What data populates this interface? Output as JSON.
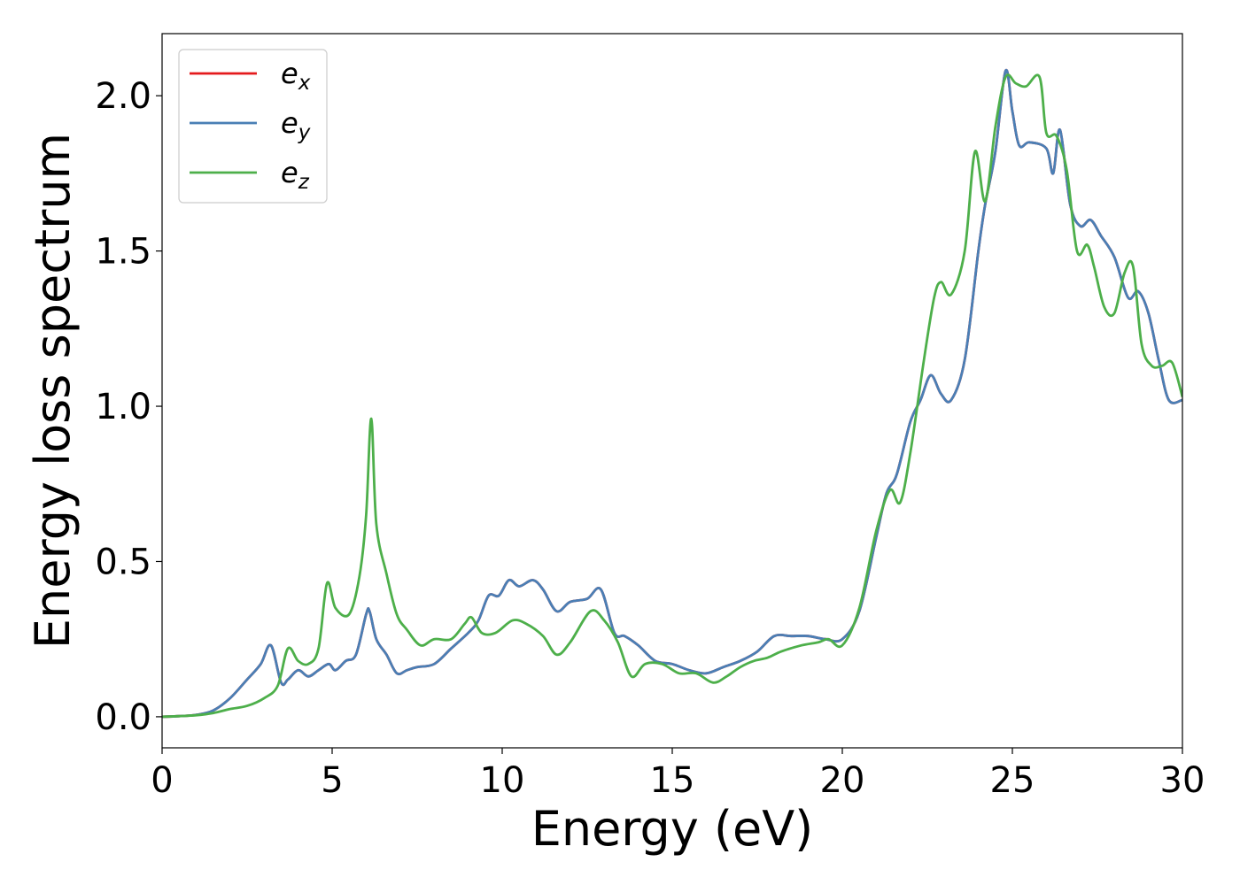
{
  "chart_data": {
    "type": "line",
    "xlabel": "Energy (eV)",
    "ylabel": "Energy loss spectrum",
    "xlim": [
      0,
      30
    ],
    "ylim": [
      -0.1,
      2.2
    ],
    "xticks": [
      0,
      5,
      10,
      15,
      20,
      25,
      30
    ],
    "yticks": [
      0.0,
      0.5,
      1.0,
      1.5,
      2.0
    ],
    "xtick_labels": [
      "0",
      "5",
      "10",
      "15",
      "20",
      "25",
      "30"
    ],
    "ytick_labels": [
      "0.0",
      "0.5",
      "1.0",
      "1.5",
      "2.0"
    ],
    "grid": false,
    "legend_position": "top-left",
    "series": [
      {
        "name": "e_x",
        "label_base": "e",
        "label_sub": "x",
        "color": "#e41a1c",
        "x": [
          0,
          0.5,
          1.0,
          1.5,
          2.0,
          2.5,
          2.9,
          3.2,
          3.5,
          3.7,
          4.0,
          4.3,
          4.6,
          4.9,
          5.1,
          5.4,
          5.7,
          6.0,
          6.1,
          6.3,
          6.6,
          6.9,
          7.2,
          7.5,
          8.0,
          8.5,
          9.0,
          9.3,
          9.6,
          9.9,
          10.2,
          10.5,
          10.9,
          11.2,
          11.6,
          12.0,
          12.5,
          12.9,
          13.3,
          13.6,
          14.0,
          14.5,
          15.0,
          15.5,
          16.0,
          16.5,
          17.0,
          17.5,
          18.0,
          18.5,
          19.0,
          19.5,
          20.0,
          20.5,
          21.0,
          21.3,
          21.6,
          22.0,
          22.3,
          22.6,
          22.9,
          23.2,
          23.6,
          24.0,
          24.2,
          24.5,
          24.8,
          25.0,
          25.2,
          25.5,
          26.0,
          26.2,
          26.4,
          26.7,
          27.0,
          27.3,
          27.6,
          28.0,
          28.4,
          28.7,
          29.0,
          29.3,
          29.6,
          30.0
        ],
        "y": [
          0.0,
          0.002,
          0.006,
          0.02,
          0.06,
          0.12,
          0.17,
          0.23,
          0.11,
          0.12,
          0.15,
          0.13,
          0.15,
          0.17,
          0.15,
          0.18,
          0.2,
          0.33,
          0.34,
          0.25,
          0.2,
          0.14,
          0.15,
          0.16,
          0.17,
          0.22,
          0.27,
          0.31,
          0.39,
          0.39,
          0.44,
          0.42,
          0.44,
          0.41,
          0.34,
          0.37,
          0.38,
          0.41,
          0.27,
          0.26,
          0.23,
          0.18,
          0.17,
          0.15,
          0.14,
          0.16,
          0.18,
          0.21,
          0.26,
          0.26,
          0.26,
          0.25,
          0.25,
          0.34,
          0.58,
          0.72,
          0.78,
          0.95,
          1.02,
          1.1,
          1.04,
          1.02,
          1.15,
          1.5,
          1.65,
          1.82,
          2.08,
          1.95,
          1.84,
          1.85,
          1.83,
          1.75,
          1.89,
          1.65,
          1.58,
          1.6,
          1.55,
          1.48,
          1.35,
          1.37,
          1.3,
          1.15,
          1.02,
          1.02
        ]
      },
      {
        "name": "e_y",
        "label_base": "e",
        "label_sub": "y",
        "color": "#4a7fb5",
        "x": [
          0,
          0.5,
          1.0,
          1.5,
          2.0,
          2.5,
          2.9,
          3.2,
          3.5,
          3.7,
          4.0,
          4.3,
          4.6,
          4.9,
          5.1,
          5.4,
          5.7,
          6.0,
          6.1,
          6.3,
          6.6,
          6.9,
          7.2,
          7.5,
          8.0,
          8.5,
          9.0,
          9.3,
          9.6,
          9.9,
          10.2,
          10.5,
          10.9,
          11.2,
          11.6,
          12.0,
          12.5,
          12.9,
          13.3,
          13.6,
          14.0,
          14.5,
          15.0,
          15.5,
          16.0,
          16.5,
          17.0,
          17.5,
          18.0,
          18.5,
          19.0,
          19.5,
          20.0,
          20.5,
          21.0,
          21.3,
          21.6,
          22.0,
          22.3,
          22.6,
          22.9,
          23.2,
          23.6,
          24.0,
          24.2,
          24.5,
          24.8,
          25.0,
          25.2,
          25.5,
          26.0,
          26.2,
          26.4,
          26.7,
          27.0,
          27.3,
          27.6,
          28.0,
          28.4,
          28.7,
          29.0,
          29.3,
          29.6,
          30.0
        ],
        "y": [
          0.0,
          0.002,
          0.006,
          0.02,
          0.06,
          0.12,
          0.17,
          0.23,
          0.11,
          0.12,
          0.15,
          0.13,
          0.15,
          0.17,
          0.15,
          0.18,
          0.2,
          0.33,
          0.34,
          0.25,
          0.2,
          0.14,
          0.15,
          0.16,
          0.17,
          0.22,
          0.27,
          0.31,
          0.39,
          0.39,
          0.44,
          0.42,
          0.44,
          0.41,
          0.34,
          0.37,
          0.38,
          0.41,
          0.27,
          0.26,
          0.23,
          0.18,
          0.17,
          0.15,
          0.14,
          0.16,
          0.18,
          0.21,
          0.26,
          0.26,
          0.26,
          0.25,
          0.25,
          0.34,
          0.58,
          0.72,
          0.78,
          0.95,
          1.02,
          1.1,
          1.04,
          1.02,
          1.15,
          1.5,
          1.65,
          1.82,
          2.08,
          1.95,
          1.84,
          1.85,
          1.83,
          1.75,
          1.89,
          1.65,
          1.58,
          1.6,
          1.55,
          1.48,
          1.35,
          1.37,
          1.3,
          1.15,
          1.02,
          1.02
        ]
      },
      {
        "name": "e_z",
        "label_base": "e",
        "label_sub": "z",
        "color": "#4daf4a",
        "x": [
          0,
          0.5,
          1.0,
          1.5,
          2.0,
          2.5,
          3.0,
          3.4,
          3.7,
          4.0,
          4.3,
          4.6,
          4.85,
          5.1,
          5.5,
          5.8,
          6.0,
          6.15,
          6.3,
          6.6,
          6.9,
          7.2,
          7.6,
          8.0,
          8.5,
          8.9,
          9.1,
          9.4,
          9.8,
          10.3,
          10.7,
          11.2,
          11.6,
          12.0,
          12.6,
          13.0,
          13.4,
          13.8,
          14.2,
          14.7,
          15.2,
          15.7,
          16.2,
          16.6,
          17.0,
          17.4,
          17.8,
          18.2,
          18.8,
          19.3,
          19.6,
          20.0,
          20.5,
          21.0,
          21.4,
          21.7,
          22.0,
          22.4,
          22.7,
          22.9,
          23.2,
          23.6,
          23.9,
          24.2,
          24.5,
          24.8,
          25.1,
          25.4,
          25.8,
          26.0,
          26.3,
          26.6,
          26.9,
          27.2,
          27.4,
          27.7,
          28.0,
          28.3,
          28.55,
          28.8,
          29.1,
          29.4,
          29.7,
          30.0
        ],
        "y": [
          0.0,
          0.002,
          0.005,
          0.012,
          0.025,
          0.035,
          0.06,
          0.1,
          0.22,
          0.18,
          0.17,
          0.22,
          0.43,
          0.35,
          0.33,
          0.45,
          0.65,
          0.96,
          0.62,
          0.46,
          0.33,
          0.28,
          0.23,
          0.25,
          0.25,
          0.3,
          0.32,
          0.27,
          0.27,
          0.31,
          0.3,
          0.26,
          0.2,
          0.24,
          0.34,
          0.31,
          0.24,
          0.13,
          0.17,
          0.17,
          0.14,
          0.14,
          0.11,
          0.13,
          0.16,
          0.18,
          0.19,
          0.21,
          0.23,
          0.24,
          0.25,
          0.23,
          0.35,
          0.6,
          0.73,
          0.69,
          0.85,
          1.15,
          1.35,
          1.4,
          1.36,
          1.5,
          1.82,
          1.66,
          1.9,
          2.06,
          2.04,
          2.03,
          2.06,
          1.88,
          1.87,
          1.76,
          1.5,
          1.52,
          1.45,
          1.32,
          1.3,
          1.43,
          1.45,
          1.2,
          1.13,
          1.13,
          1.14,
          1.03
        ]
      }
    ]
  }
}
